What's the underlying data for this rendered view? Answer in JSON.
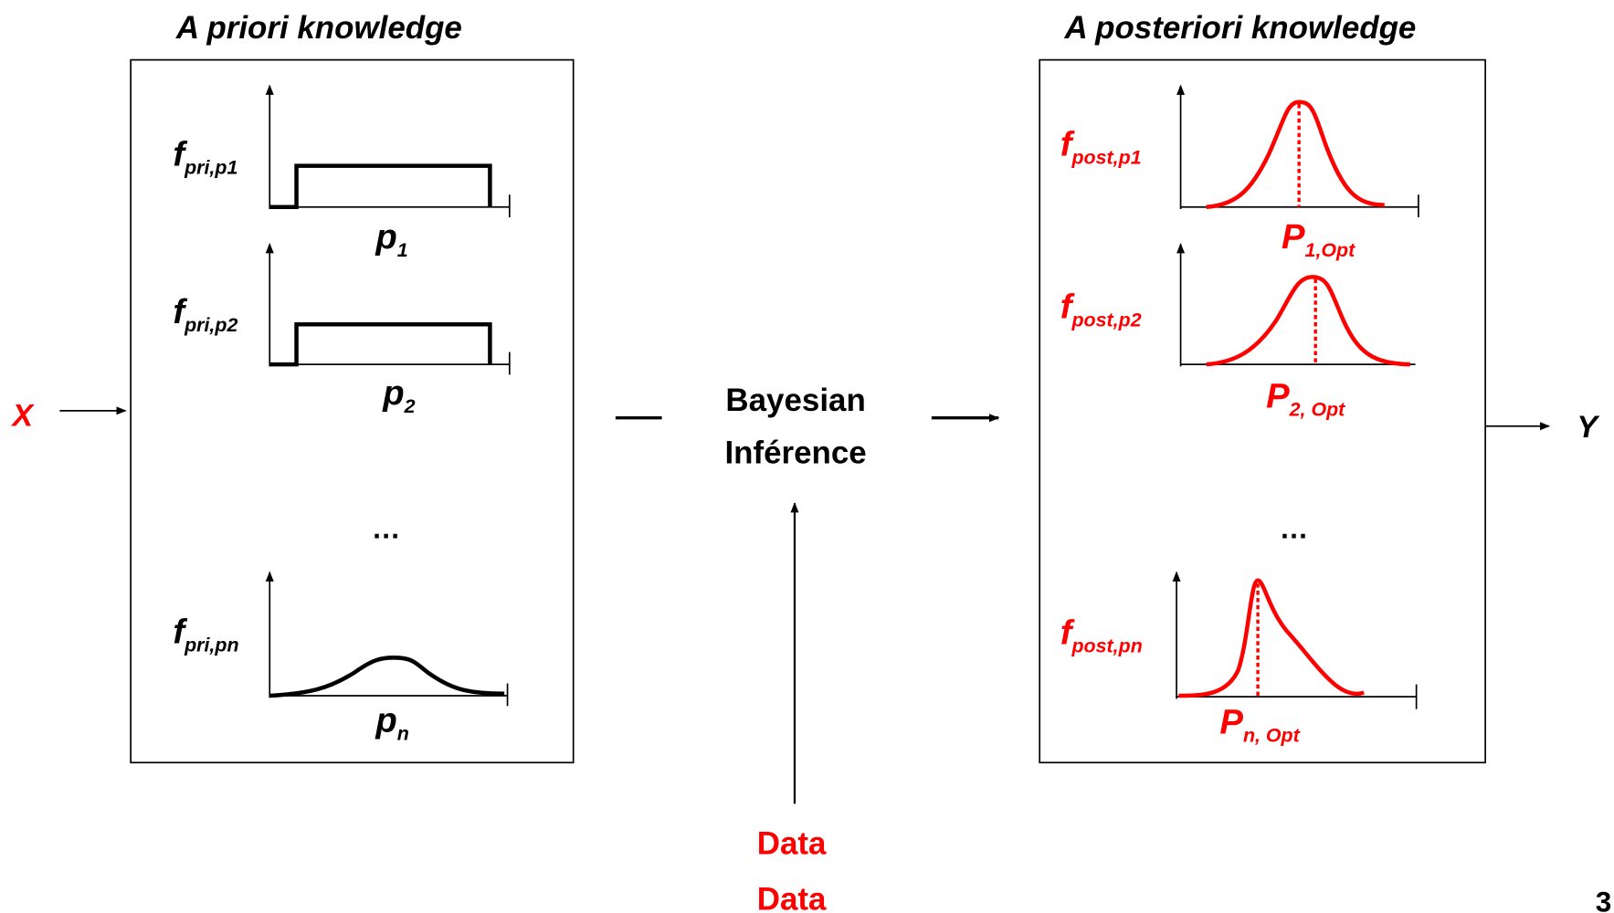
{
  "input": "X",
  "output": "Y",
  "prior": {
    "title": "A priori knowledge",
    "plots": [
      {
        "f": "f",
        "f_sub": "pri,p1",
        "p": "p",
        "p_sub": "1"
      },
      {
        "f": "f",
        "f_sub": "pri,p2",
        "p": "p",
        "p_sub": "2"
      },
      {
        "f": "f",
        "f_sub": "pri,pn",
        "p": "p",
        "p_sub": "n"
      }
    ],
    "ellipsis": "…"
  },
  "center": {
    "lines": [
      "Bayesian",
      "Inférence"
    ]
  },
  "data_labels": [
    "Data",
    "Data"
  ],
  "posterior": {
    "title": "A posteriori knowledge",
    "plots": [
      {
        "f": "f",
        "f_sub": "post,p1",
        "p": "P",
        "p_sub": "1,Opt"
      },
      {
        "f": "f",
        "f_sub": "post,p2",
        "p": "P",
        "p_sub": "2, Opt"
      },
      {
        "f": "f",
        "f_sub": "post,pn",
        "p": "P",
        "p_sub": "n, Opt"
      }
    ],
    "ellipsis": "…"
  },
  "page_number": "3"
}
